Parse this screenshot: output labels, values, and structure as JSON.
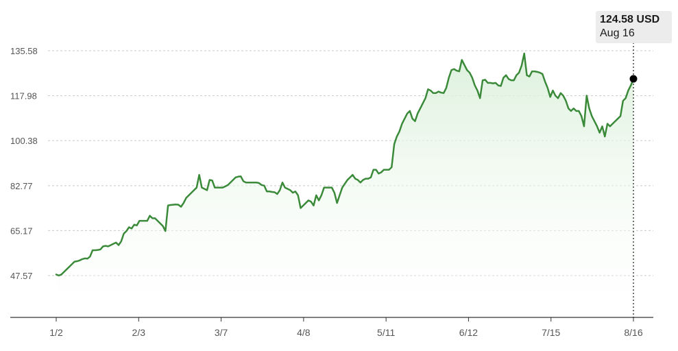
{
  "chart_data": {
    "type": "area",
    "y_ticks": [
      "135.58",
      "117.98",
      "100.38",
      "82.77",
      "65.17",
      "47.57"
    ],
    "x_ticks": [
      "1/2",
      "2/3",
      "3/7",
      "4/8",
      "5/11",
      "6/12",
      "7/15",
      "8/16"
    ],
    "ylim": [
      40,
      142
    ],
    "grid": true,
    "series": [
      {
        "values": [
          48,
          47.6,
          48,
          49,
          50,
          51,
          52,
          53,
          53.2,
          53.5,
          54,
          54.3,
          54.2,
          55,
          57.5,
          57.5,
          57.6,
          57.8,
          59,
          59.2,
          59,
          59.5,
          60,
          60.5,
          59.5,
          61,
          64,
          65,
          66.5,
          66,
          67.5,
          67.2,
          69,
          69,
          69,
          69,
          71,
          70,
          70,
          69,
          68,
          67,
          65,
          75,
          75.2,
          75.3,
          75.4,
          75.3,
          74.5,
          76,
          78,
          79,
          80,
          81,
          82,
          87,
          82,
          81.5,
          81,
          85,
          84.8,
          82,
          82,
          82,
          82,
          82.5,
          83,
          84,
          85,
          86,
          86.3,
          86.4,
          84.5,
          84,
          84,
          84,
          84,
          84,
          83.8,
          83,
          82.8,
          80.5,
          80.5,
          80.3,
          80.2,
          79.5,
          81,
          84,
          82,
          81.5,
          81,
          80,
          80.5,
          79,
          74,
          75,
          76,
          77,
          76.5,
          75,
          79,
          77,
          79,
          82,
          82,
          82,
          82,
          80,
          76,
          79,
          82,
          83.5,
          85,
          86,
          87,
          85.5,
          85,
          84,
          85,
          85.5,
          85.5,
          86,
          89,
          89,
          87.5,
          88,
          89,
          89,
          89,
          90,
          99,
          102,
          104,
          107,
          109,
          111,
          112,
          109,
          108,
          111,
          113,
          115,
          117,
          120.5,
          120,
          119,
          119,
          119.6,
          119.2,
          119,
          121,
          125,
          128,
          128.4,
          127.8,
          127.5,
          132,
          130,
          128,
          127,
          125,
          122,
          120,
          117,
          124,
          124.2,
          123,
          123,
          122.8,
          123,
          122,
          121.8,
          125,
          126,
          124.5,
          124,
          124,
          126,
          127,
          129.8,
          134.5,
          126,
          125.5,
          127.5,
          127.5,
          127.3,
          127,
          126.5,
          123.5,
          121,
          117.5,
          120,
          118,
          117,
          119,
          118,
          116,
          113,
          112,
          113,
          112,
          112,
          110,
          106,
          118,
          113,
          110,
          108,
          106,
          103.5,
          106,
          102,
          107,
          106,
          107,
          108,
          109,
          110,
          116,
          117,
          120,
          122,
          124.58
        ]
      }
    ]
  },
  "tooltip": {
    "price": "124.58 USD",
    "date": "Aug 16"
  },
  "colors": {
    "line": "#3a8a3a",
    "fill": "#eaf6ea",
    "grid": "#c8c8c8",
    "axis": "#333333",
    "tick_text": "#555555"
  }
}
